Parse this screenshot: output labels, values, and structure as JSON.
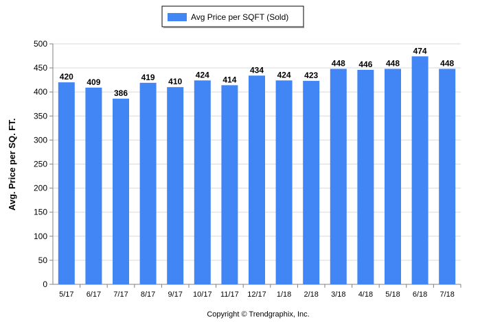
{
  "chart_data": {
    "type": "bar",
    "categories": [
      "5/17",
      "6/17",
      "7/17",
      "8/17",
      "9/17",
      "10/17",
      "11/17",
      "12/17",
      "1/18",
      "2/18",
      "3/18",
      "4/18",
      "5/18",
      "6/18",
      "7/18"
    ],
    "series": [
      {
        "name": "Avg Price per SQFT (Sold)",
        "values": [
          420,
          409,
          386,
          419,
          410,
          424,
          414,
          434,
          424,
          423,
          448,
          446,
          448,
          474,
          448
        ]
      }
    ],
    "data_labels": [
      "420",
      "409",
      "386",
      "419",
      "410",
      "424",
      "414",
      "434",
      "424",
      "423",
      "448",
      "446",
      "448",
      "474",
      "448"
    ],
    "ylabel": "Avg. Price per SQ. FT.",
    "xlabel": "",
    "ylim": [
      0,
      500
    ],
    "yticks": [
      0,
      50,
      100,
      150,
      200,
      250,
      300,
      350,
      400,
      450,
      500
    ],
    "grid": true,
    "legend": "top-center",
    "bar_color": "#4285f4"
  },
  "footer": {
    "copyright": "Copyright © Trendgraphix, Inc."
  }
}
